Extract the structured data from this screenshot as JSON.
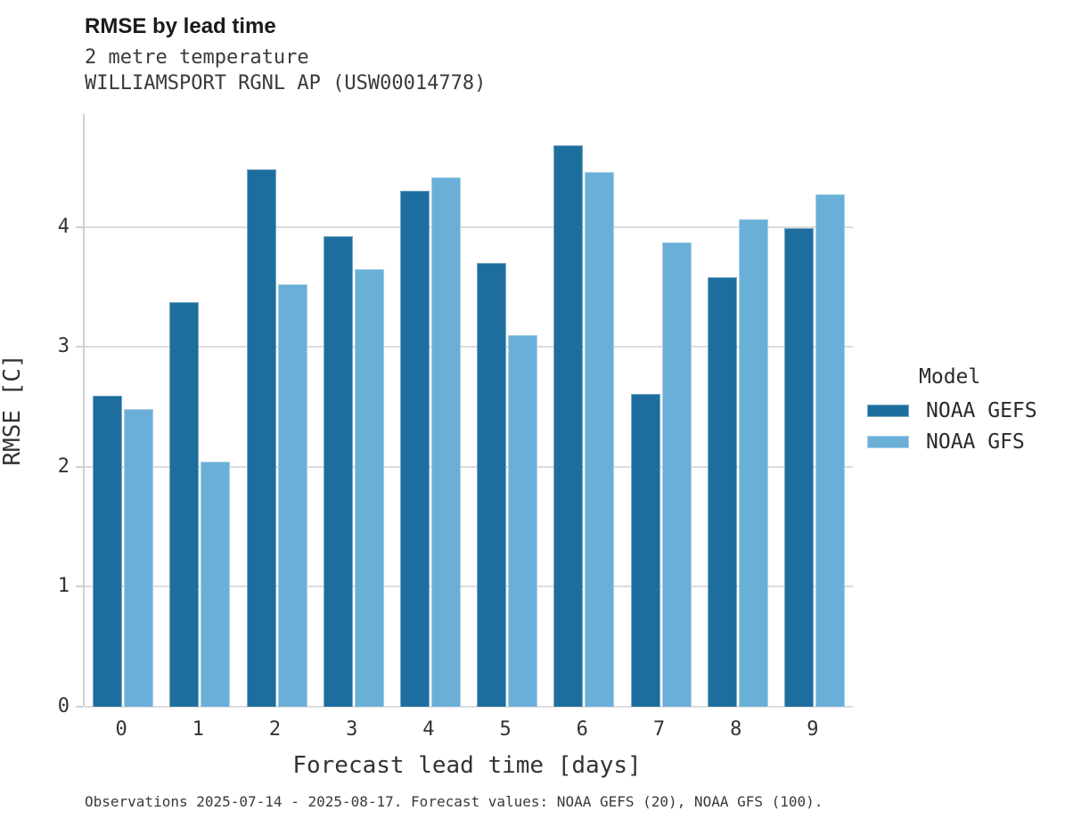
{
  "header": {
    "title": "RMSE by lead time",
    "subtitle1": "2 metre temperature",
    "subtitle2": "WILLIAMSPORT RGNL AP (USW00014778)"
  },
  "chart_data": {
    "type": "bar",
    "title": "RMSE by lead time",
    "subtitle": [
      "2 metre temperature",
      "WILLIAMSPORT RGNL AP (USW00014778)"
    ],
    "categories": [
      "0",
      "1",
      "2",
      "3",
      "4",
      "5",
      "6",
      "7",
      "8",
      "9"
    ],
    "series": [
      {
        "name": "NOAA GEFS",
        "color": "#1d6e9e",
        "values": [
          2.59,
          3.37,
          4.48,
          3.92,
          4.3,
          3.7,
          4.68,
          2.61,
          3.58,
          3.99
        ]
      },
      {
        "name": "NOAA GFS",
        "color": "#6aafd8",
        "values": [
          2.48,
          2.04,
          3.52,
          3.65,
          4.41,
          3.1,
          4.46,
          3.87,
          4.06,
          4.27
        ]
      }
    ],
    "xlabel": "Forecast lead time [days]",
    "ylabel": "RMSE [C]",
    "ylim": [
      0,
      4.94
    ],
    "yticks": [
      0,
      1,
      2,
      3,
      4
    ],
    "grid": true,
    "legend_title": "Model",
    "legend_position": "right"
  },
  "legend": {
    "title": "Model",
    "entries": [
      {
        "label": "NOAA GEFS",
        "color": "#1d6e9e"
      },
      {
        "label": "NOAA GFS",
        "color": "#6aafd8"
      }
    ]
  },
  "footer": {
    "caption": "Observations 2025-07-14 - 2025-08-17. Forecast values: NOAA GEFS (20), NOAA GFS (100)."
  },
  "colors": {
    "series_dark_blue": "#1d6e9e",
    "series_light_blue": "#6aafd8",
    "gridline": "#dcdcdc",
    "axis_spine": "#cfcfcf",
    "text": "#333333"
  }
}
